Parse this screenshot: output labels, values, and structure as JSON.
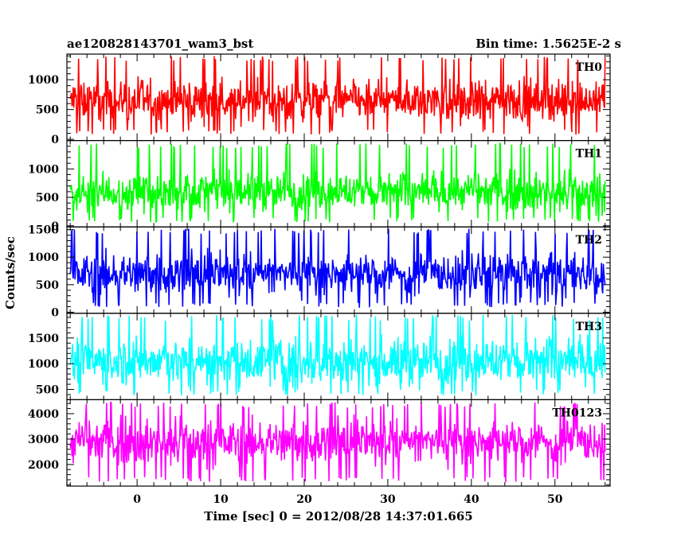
{
  "header": {
    "title_left": "ae120828143701_wam3_bst",
    "title_right": "Bin time: 1.5625E-2 s"
  },
  "xaxis": {
    "label": "Time [sec] 0 = 2012/08/28 14:37:01.665",
    "range": [
      -8.4,
      56.6
    ],
    "ticks": [
      0,
      10,
      20,
      30,
      40,
      50
    ],
    "tick_labels": [
      "0",
      "10",
      "20",
      "30",
      "40",
      "50"
    ]
  },
  "yaxis": {
    "label": "Counts/sec"
  },
  "chart_data": [
    {
      "type": "line",
      "name": "TH0",
      "color": "#ff0000",
      "ylim": [
        -20,
        1430
      ],
      "ticks": [
        0,
        500,
        1000
      ],
      "tick_labels": [
        "0",
        "500",
        "1000"
      ],
      "x_range": [
        -8.0,
        56.0
      ],
      "level": {
        "mean": 650,
        "low": 80,
        "high": 1400,
        "noise": 170
      }
    },
    {
      "type": "line",
      "name": "TH1",
      "color": "#00ff00",
      "ylim": [
        -20,
        1500
      ],
      "ticks": [
        0,
        500,
        1000
      ],
      "tick_labels": [
        "0",
        "500",
        "1000"
      ],
      "x_range": [
        -8.0,
        56.0
      ],
      "level": {
        "mean": 600,
        "low": 60,
        "high": 1450,
        "noise": 165
      }
    },
    {
      "type": "line",
      "name": "TH2",
      "color": "#0000ff",
      "ylim": [
        -20,
        1550
      ],
      "ticks": [
        0,
        500,
        1000,
        1500
      ],
      "tick_labels": [
        "0",
        "500",
        "1000",
        "1500"
      ],
      "x_range": [
        -8.0,
        56.0
      ],
      "level": {
        "mean": 700,
        "low": 80,
        "high": 1520,
        "noise": 190
      }
    },
    {
      "type": "line",
      "name": "TH3",
      "color": "#00ffff",
      "ylim": [
        300,
        1980
      ],
      "ticks": [
        500,
        1000,
        1500
      ],
      "tick_labels": [
        "500",
        "1000",
        "1500"
      ],
      "x_range": [
        -8.0,
        56.0
      ],
      "level": {
        "mean": 1050,
        "low": 380,
        "high": 1950,
        "noise": 230
      }
    },
    {
      "type": "line",
      "name": "TH0123",
      "color": "#ff00ff",
      "ylim": [
        1150,
        4550
      ],
      "ticks": [
        2000,
        3000,
        4000
      ],
      "tick_labels": [
        "2000",
        "3000",
        "4000"
      ],
      "x_range": [
        -8.0,
        56.0
      ],
      "level": {
        "mean": 2900,
        "low": 1300,
        "high": 4450,
        "noise": 430
      }
    }
  ]
}
